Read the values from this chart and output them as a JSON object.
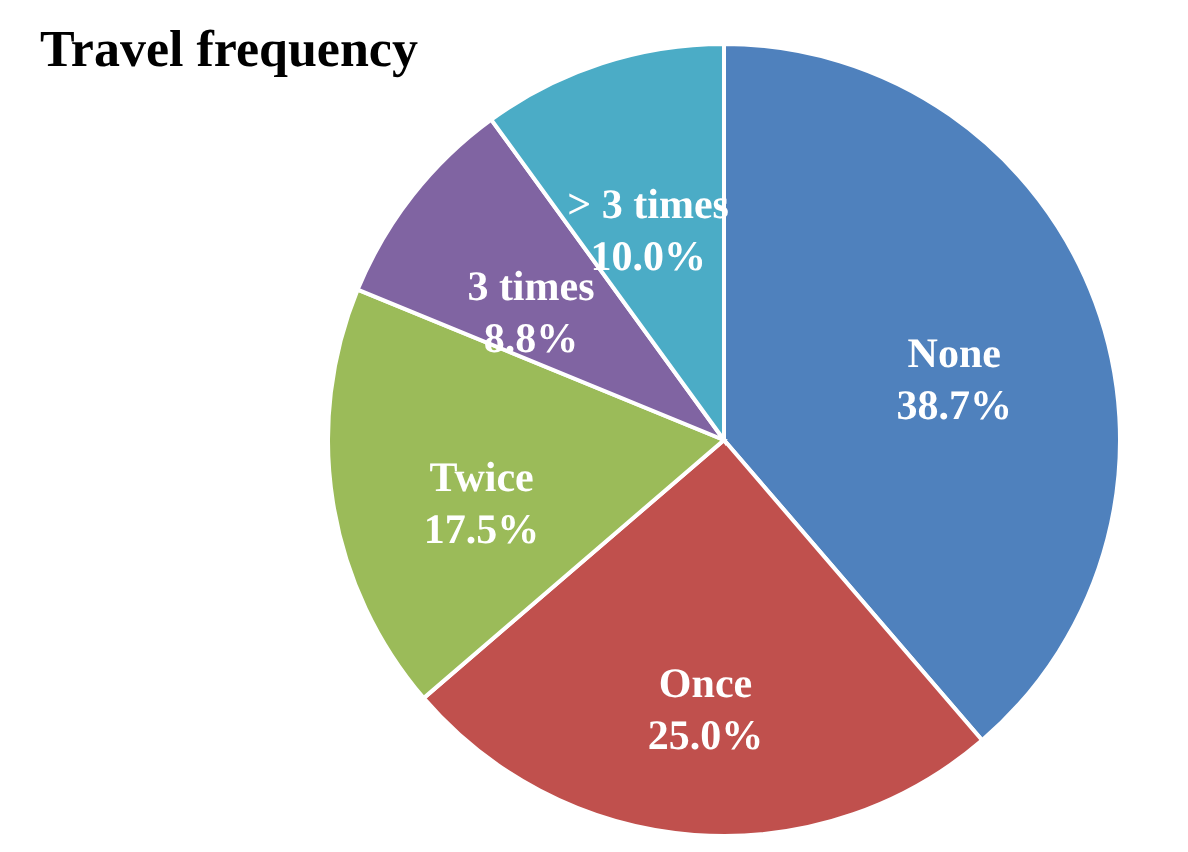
{
  "chart_data": {
    "type": "pie",
    "title": "Travel frequency",
    "categories": [
      "None",
      "Once",
      "Twice",
      "3 times",
      "> 3 times"
    ],
    "values": [
      38.7,
      25.0,
      17.5,
      8.8,
      10.0
    ],
    "value_labels": [
      "38.7%",
      "25.0%",
      "17.5%",
      "8.8%",
      "10.0%"
    ],
    "colors": [
      "#4f81bd",
      "#c0504d",
      "#9bbb59",
      "#8064a2",
      "#4bacc6"
    ],
    "legend": false
  }
}
